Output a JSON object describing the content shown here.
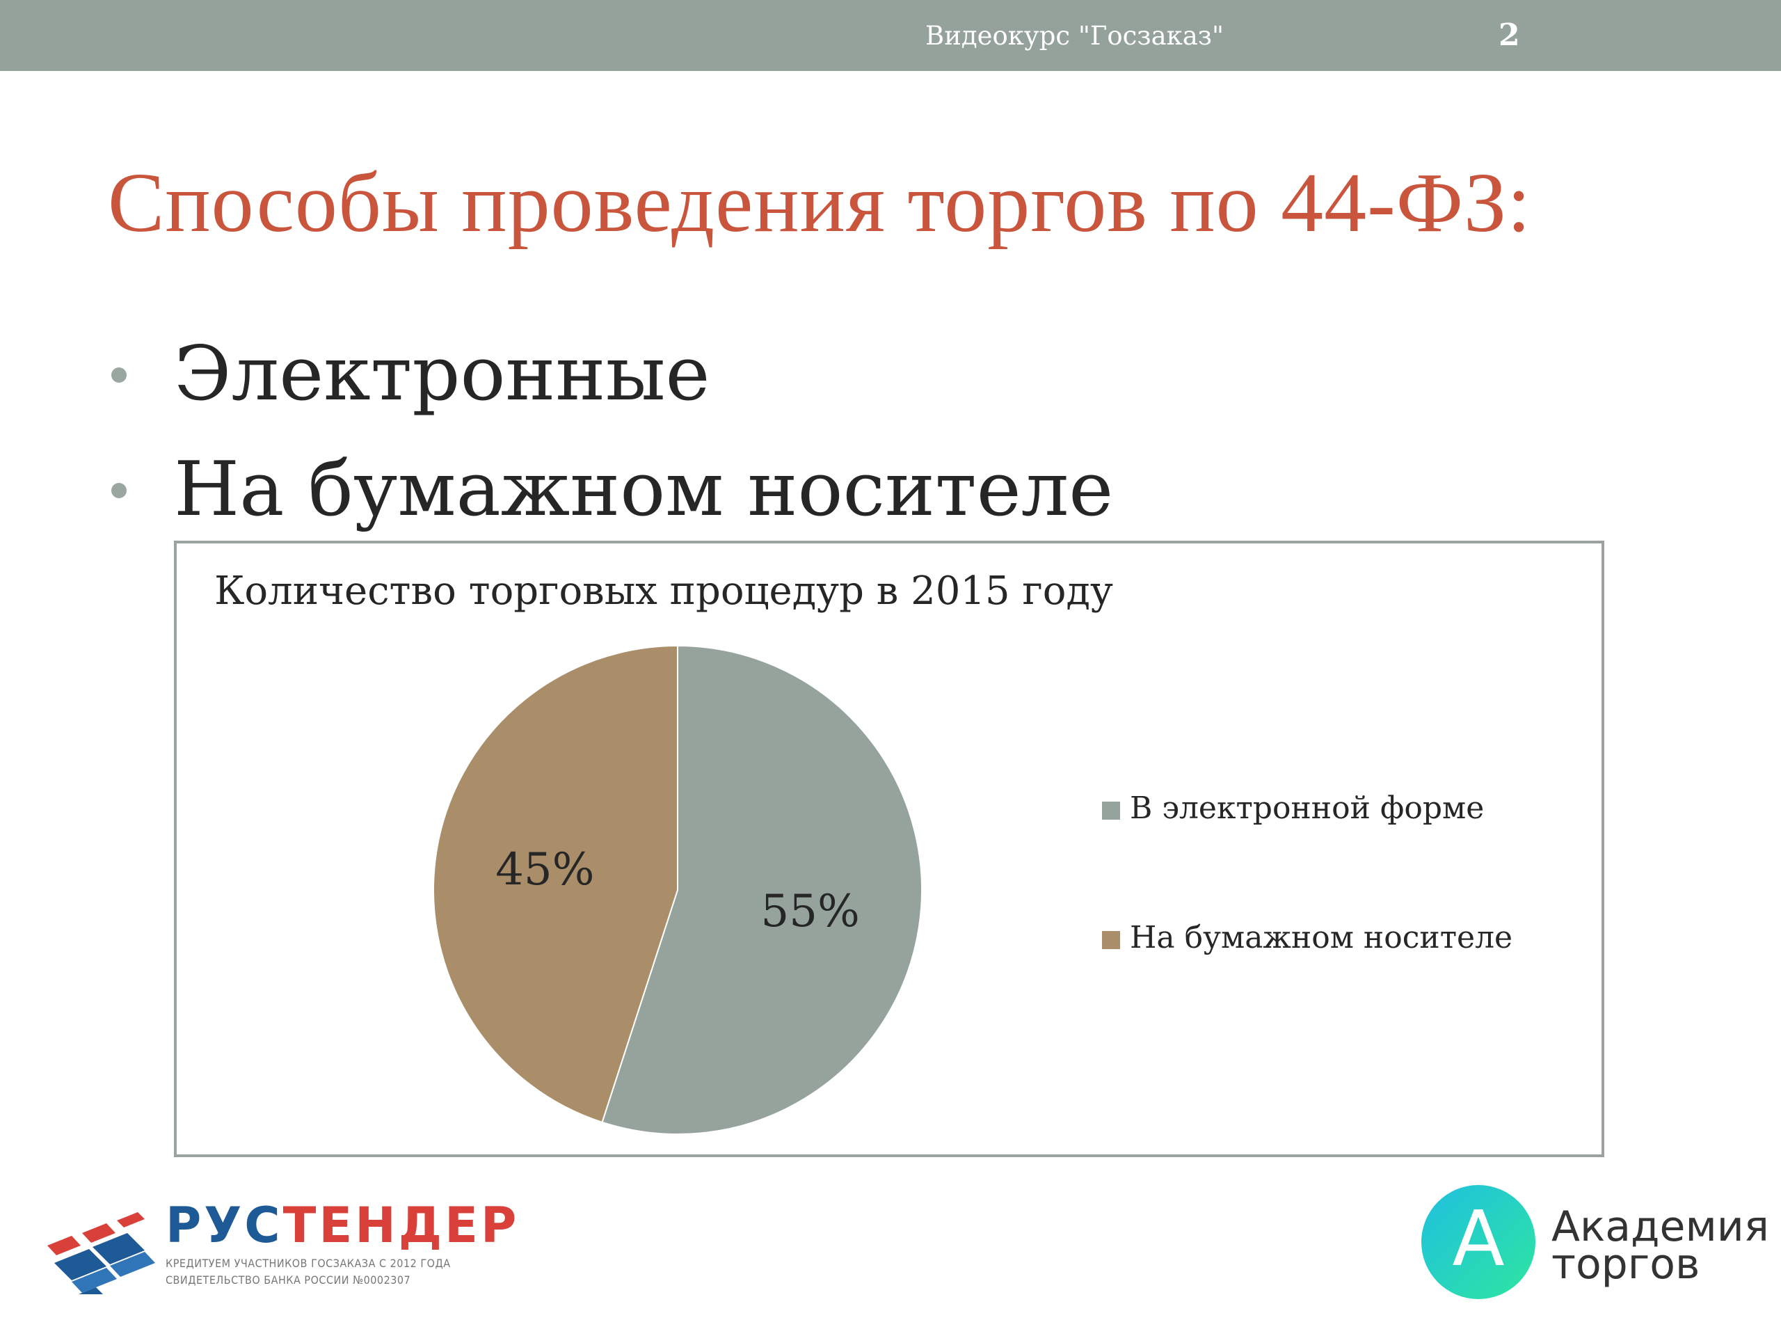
{
  "header": {
    "course_title": "Видеокурс \"Госзаказ\"",
    "slide_number": "2",
    "bar_color": "#95a29c"
  },
  "slide": {
    "title": "Способы проведения торгов по 44-ФЗ:",
    "title_color": "#c9553c",
    "bullets": [
      "Электронные",
      "На бумажном носителе"
    ]
  },
  "chart_data": {
    "type": "pie",
    "title": "Количество торговых процедур в 2015 году",
    "legend_position": "right",
    "series": [
      {
        "name": "В электронной форме",
        "value": 55,
        "label": "55%",
        "color": "#95a39c"
      },
      {
        "name": "На бумажном носителе",
        "value": 45,
        "label": "45%",
        "color": "#a98e69"
      }
    ]
  },
  "logos": {
    "rustender": {
      "name_part1": "РУС",
      "name_part2": "ТЕНДЕР",
      "line1": "КРЕДИТУЕМ УЧАСТНИКОВ ГОСЗАКАЗА С 2012 ГОДА",
      "line2": "СВИДЕТЕЛЬСТВО БАНКА РОССИИ №0002307",
      "color_blue": "#1e5a96",
      "color_red": "#d9403a"
    },
    "akademia": {
      "letter": "А",
      "line1": "Академия",
      "line2": "торгов"
    }
  }
}
